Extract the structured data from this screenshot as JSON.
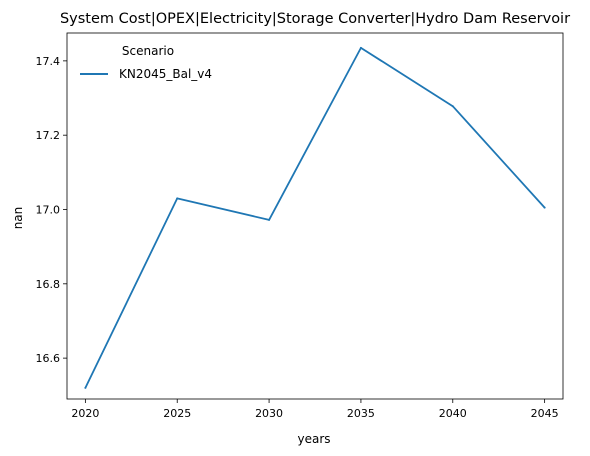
{
  "chart_data": {
    "type": "line",
    "title": "System Cost|OPEX|Electricity|Storage Converter|Hydro Dam Reservoir",
    "xlabel": "years",
    "ylabel": "nan",
    "x": [
      2020,
      2025,
      2030,
      2035,
      2040,
      2045
    ],
    "xticks": [
      2020,
      2025,
      2030,
      2035,
      2040,
      2045
    ],
    "xlim": [
      2019,
      2046
    ],
    "ylim": [
      16.49,
      17.475
    ],
    "yticks": [
      16.6,
      16.8,
      17.0,
      17.2,
      17.4
    ],
    "grid": false,
    "legend": {
      "title": "Scenario",
      "placement": "top-left"
    },
    "series": [
      {
        "name": "KN2045_Bal_v4",
        "color": "#1f77b4",
        "values": [
          16.52,
          17.03,
          16.972,
          17.435,
          17.278,
          17.005
        ]
      }
    ]
  }
}
